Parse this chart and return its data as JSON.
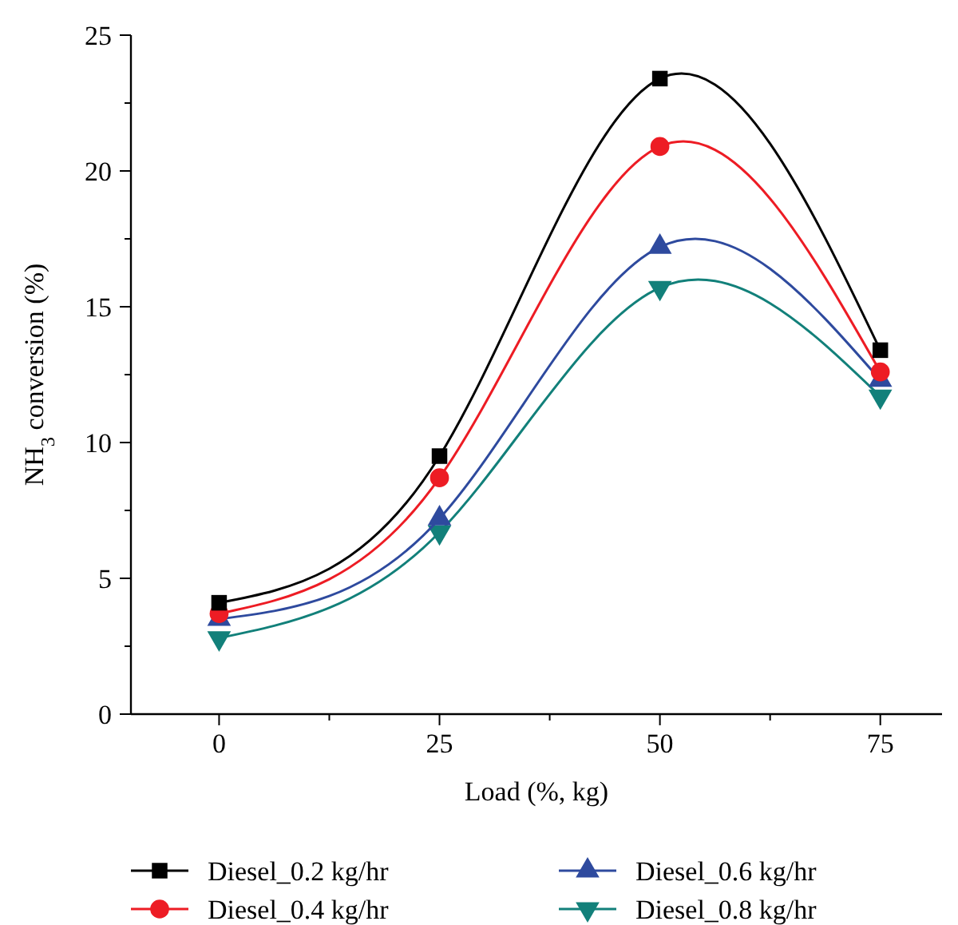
{
  "chart_data": {
    "type": "line",
    "xlabel": "Load (%, kg)",
    "ylabel": "NH$_{3}$ conversion (%)",
    "x": [
      0,
      25,
      50,
      75
    ],
    "xlim": [
      -10,
      82
    ],
    "xticks": [
      0,
      {
        "value": 12.5,
        "label": null
      },
      25,
      {
        "value": 37.5,
        "label": null
      },
      50,
      {
        "value": 62.5,
        "label": null
      },
      75
    ],
    "ylim": [
      0,
      25
    ],
    "yticks": [
      0,
      {
        "value": 2.5,
        "label": null
      },
      5,
      {
        "value": 7.5,
        "label": null
      },
      10,
      {
        "value": 12.5,
        "label": null
      },
      15,
      {
        "value": 17.5,
        "label": null
      },
      20,
      {
        "value": 22.5,
        "label": null
      },
      25
    ],
    "grid": false,
    "legend": "bottom",
    "line_style": "solid",
    "series": [
      {
        "name": "Diesel_0.2 kg/hr",
        "color": "#000000",
        "marker": "square",
        "values": [
          4.1,
          9.5,
          23.4,
          13.4
        ]
      },
      {
        "name": "Diesel_0.4 kg/hr",
        "color": "#ed1c24",
        "marker": "circle",
        "values": [
          3.7,
          8.7,
          20.9,
          12.6
        ]
      },
      {
        "name": "Diesel_0.6 kg/hr",
        "color": "#2e4a9e",
        "marker": "triangle",
        "values": [
          3.5,
          7.2,
          17.2,
          12.3
        ]
      },
      {
        "name": "Diesel_0.8 kg/hr",
        "color": "#12807a",
        "marker": "triangle-down",
        "values": [
          2.8,
          6.7,
          15.7,
          11.7
        ]
      }
    ]
  }
}
